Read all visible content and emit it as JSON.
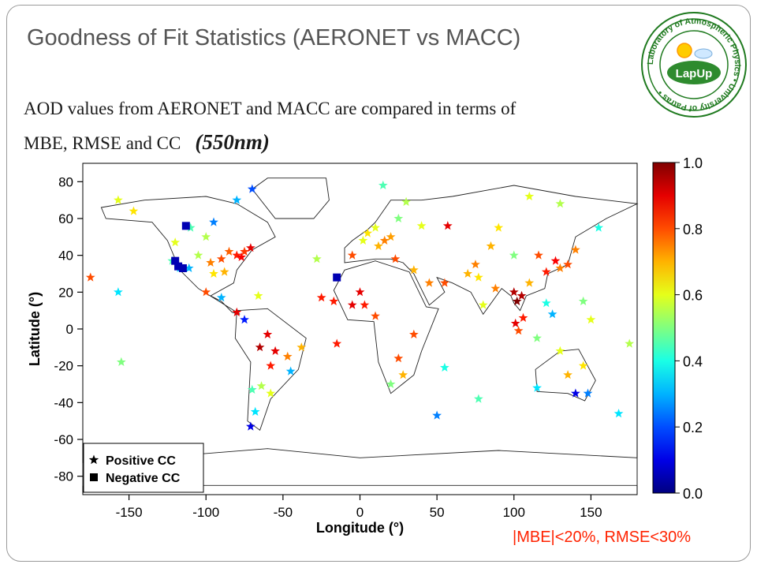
{
  "slide": {
    "title": "Goodness of Fit Statistics (AERONET vs MACC)",
    "body_line1": "AOD values from AERONET and MACC are compared in terms of",
    "body_line2": "MBE, RMSE and CC",
    "wavelength": "(550nm)",
    "criteria": "|MBE|<20%, RMSE<30%",
    "criteria_color": "#ff2200"
  },
  "logo": {
    "ring_text": "Laboratory of Atmospheric Physics • University of Patras •",
    "center_label": "LapUp",
    "colors": {
      "ring": "#1f7a1f",
      "center": "#2e8b2e",
      "text": "#ffffff"
    }
  },
  "chart_data": {
    "type": "scatter",
    "xlabel": "Longitude (°)",
    "ylabel": "Latitude (°)",
    "xlim": [
      -180,
      180
    ],
    "ylim": [
      -90,
      90
    ],
    "xticks": [
      -150,
      -100,
      -50,
      0,
      50,
      100,
      150
    ],
    "yticks": [
      -80,
      -60,
      -40,
      -20,
      0,
      20,
      40,
      60,
      80
    ],
    "colorbar": {
      "min": 0.0,
      "max": 1.0,
      "ticks": [
        "0.0",
        "0.2",
        "0.4",
        "0.6",
        "0.8",
        "1.0"
      ],
      "colormap": "jet"
    },
    "legend": {
      "placement": "bottom-left",
      "entries": [
        {
          "marker": "star",
          "label": "Positive CC"
        },
        {
          "marker": "square",
          "label": "Negative CC"
        }
      ]
    },
    "stations": [
      {
        "lon": -157,
        "lat": 70,
        "cc": 0.6,
        "marker": "star"
      },
      {
        "lon": -147,
        "lat": 64,
        "cc": 0.65,
        "marker": "star"
      },
      {
        "lon": -105,
        "lat": 40,
        "cc": 0.55,
        "marker": "star"
      },
      {
        "lon": -111,
        "lat": 33,
        "cc": 0.3,
        "marker": "star"
      },
      {
        "lon": -117,
        "lat": 33,
        "cc": 0.35,
        "marker": "star"
      },
      {
        "lon": -122,
        "lat": 37,
        "cc": 0.45,
        "marker": "star"
      },
      {
        "lon": -120,
        "lat": 47,
        "cc": 0.6,
        "marker": "star"
      },
      {
        "lon": -97,
        "lat": 36,
        "cc": 0.75,
        "marker": "star"
      },
      {
        "lon": -90,
        "lat": 38,
        "cc": 0.8,
        "marker": "star"
      },
      {
        "lon": -85,
        "lat": 42,
        "cc": 0.78,
        "marker": "star"
      },
      {
        "lon": -80,
        "lat": 40,
        "cc": 0.85,
        "marker": "star"
      },
      {
        "lon": -77,
        "lat": 39,
        "cc": 0.88,
        "marker": "star"
      },
      {
        "lon": -75,
        "lat": 42,
        "cc": 0.82,
        "marker": "star"
      },
      {
        "lon": -71,
        "lat": 44,
        "cc": 0.9,
        "marker": "star"
      },
      {
        "lon": -88,
        "lat": 31,
        "cc": 0.7,
        "marker": "star"
      },
      {
        "lon": -95,
        "lat": 30,
        "cc": 0.65,
        "marker": "star"
      },
      {
        "lon": -100,
        "lat": 50,
        "cc": 0.55,
        "marker": "star"
      },
      {
        "lon": -110,
        "lat": 55,
        "cc": 0.45,
        "marker": "star"
      },
      {
        "lon": -95,
        "lat": 58,
        "cc": 0.25,
        "marker": "star"
      },
      {
        "lon": -80,
        "lat": 70,
        "cc": 0.3,
        "marker": "star"
      },
      {
        "lon": -70,
        "lat": 76,
        "cc": 0.2,
        "marker": "star"
      },
      {
        "lon": -157,
        "lat": 20,
        "cc": 0.35,
        "marker": "star"
      },
      {
        "lon": -175,
        "lat": 28,
        "cc": 0.8,
        "marker": "star"
      },
      {
        "lon": -100,
        "lat": 20,
        "cc": 0.8,
        "marker": "star"
      },
      {
        "lon": -90,
        "lat": 17,
        "cc": 0.3,
        "marker": "star"
      },
      {
        "lon": -80,
        "lat": 9,
        "cc": 0.9,
        "marker": "star"
      },
      {
        "lon": -66,
        "lat": 18,
        "cc": 0.6,
        "marker": "star"
      },
      {
        "lon": -75,
        "lat": 5,
        "cc": 0.15,
        "marker": "star"
      },
      {
        "lon": -60,
        "lat": -3,
        "cc": 0.9,
        "marker": "star"
      },
      {
        "lon": -65,
        "lat": -10,
        "cc": 0.95,
        "marker": "star"
      },
      {
        "lon": -55,
        "lat": -12,
        "cc": 0.9,
        "marker": "star"
      },
      {
        "lon": -58,
        "lat": -20,
        "cc": 0.85,
        "marker": "star"
      },
      {
        "lon": -47,
        "lat": -15,
        "cc": 0.75,
        "marker": "star"
      },
      {
        "lon": -45,
        "lat": -23,
        "cc": 0.3,
        "marker": "star"
      },
      {
        "lon": -38,
        "lat": -10,
        "cc": 0.7,
        "marker": "star"
      },
      {
        "lon": -64,
        "lat": -31,
        "cc": 0.55,
        "marker": "star"
      },
      {
        "lon": -58,
        "lat": -35,
        "cc": 0.6,
        "marker": "star"
      },
      {
        "lon": -68,
        "lat": -45,
        "cc": 0.35,
        "marker": "star"
      },
      {
        "lon": -71,
        "lat": -53,
        "cc": 0.1,
        "marker": "star"
      },
      {
        "lon": -70,
        "lat": -33,
        "cc": 0.45,
        "marker": "star"
      },
      {
        "lon": -155,
        "lat": -18,
        "cc": 0.5,
        "marker": "star"
      },
      {
        "lon": -28,
        "lat": 38,
        "cc": 0.55,
        "marker": "star"
      },
      {
        "lon": -25,
        "lat": 17,
        "cc": 0.85,
        "marker": "star"
      },
      {
        "lon": -17,
        "lat": 15,
        "cc": 0.85,
        "marker": "star"
      },
      {
        "lon": -5,
        "lat": 13,
        "cc": 0.9,
        "marker": "star"
      },
      {
        "lon": -15,
        "lat": 28,
        "cc": 0.05,
        "marker": "square"
      },
      {
        "lon": -5,
        "lat": 40,
        "cc": 0.8,
        "marker": "star"
      },
      {
        "lon": 2,
        "lat": 48,
        "cc": 0.6,
        "marker": "star"
      },
      {
        "lon": 5,
        "lat": 52,
        "cc": 0.65,
        "marker": "star"
      },
      {
        "lon": 10,
        "lat": 55,
        "cc": 0.6,
        "marker": "star"
      },
      {
        "lon": 12,
        "lat": 45,
        "cc": 0.7,
        "marker": "star"
      },
      {
        "lon": 16,
        "lat": 48,
        "cc": 0.75,
        "marker": "star"
      },
      {
        "lon": 20,
        "lat": 50,
        "cc": 0.72,
        "marker": "star"
      },
      {
        "lon": 25,
        "lat": 60,
        "cc": 0.5,
        "marker": "star"
      },
      {
        "lon": 23,
        "lat": 38,
        "cc": 0.8,
        "marker": "star"
      },
      {
        "lon": 35,
        "lat": 32,
        "cc": 0.7,
        "marker": "star"
      },
      {
        "lon": 45,
        "lat": 25,
        "cc": 0.75,
        "marker": "star"
      },
      {
        "lon": 55,
        "lat": 25,
        "cc": 0.8,
        "marker": "star"
      },
      {
        "lon": 57,
        "lat": 56,
        "cc": 0.9,
        "marker": "star"
      },
      {
        "lon": 40,
        "lat": 56,
        "cc": 0.6,
        "marker": "star"
      },
      {
        "lon": 15,
        "lat": 78,
        "cc": 0.45,
        "marker": "star"
      },
      {
        "lon": 30,
        "lat": 69,
        "cc": 0.55,
        "marker": "star"
      },
      {
        "lon": 0,
        "lat": 20,
        "cc": 0.9,
        "marker": "star"
      },
      {
        "lon": 3,
        "lat": 13,
        "cc": 0.85,
        "marker": "star"
      },
      {
        "lon": 10,
        "lat": 7,
        "cc": 0.8,
        "marker": "star"
      },
      {
        "lon": -15,
        "lat": -8,
        "cc": 0.85,
        "marker": "star"
      },
      {
        "lon": 25,
        "lat": -16,
        "cc": 0.8,
        "marker": "star"
      },
      {
        "lon": 28,
        "lat": -25,
        "cc": 0.7,
        "marker": "star"
      },
      {
        "lon": 20,
        "lat": -30,
        "cc": 0.5,
        "marker": "star"
      },
      {
        "lon": 35,
        "lat": -3,
        "cc": 0.8,
        "marker": "star"
      },
      {
        "lon": 55,
        "lat": -21,
        "cc": 0.4,
        "marker": "star"
      },
      {
        "lon": 50,
        "lat": -47,
        "cc": 0.25,
        "marker": "star"
      },
      {
        "lon": 77,
        "lat": -38,
        "cc": 0.45,
        "marker": "star"
      },
      {
        "lon": 70,
        "lat": 30,
        "cc": 0.7,
        "marker": "star"
      },
      {
        "lon": 75,
        "lat": 35,
        "cc": 0.75,
        "marker": "star"
      },
      {
        "lon": 77,
        "lat": 28,
        "cc": 0.65,
        "marker": "star"
      },
      {
        "lon": 80,
        "lat": 13,
        "cc": 0.6,
        "marker": "star"
      },
      {
        "lon": 85,
        "lat": 45,
        "cc": 0.7,
        "marker": "star"
      },
      {
        "lon": 88,
        "lat": 22,
        "cc": 0.75,
        "marker": "star"
      },
      {
        "lon": 100,
        "lat": 40,
        "cc": 0.5,
        "marker": "star"
      },
      {
        "lon": 100,
        "lat": 20,
        "cc": 0.95,
        "marker": "star"
      },
      {
        "lon": 102,
        "lat": 15,
        "cc": 1.0,
        "marker": "star"
      },
      {
        "lon": 105,
        "lat": 18,
        "cc": 0.95,
        "marker": "star"
      },
      {
        "lon": 101,
        "lat": 3,
        "cc": 0.9,
        "marker": "star"
      },
      {
        "lon": 106,
        "lat": 6,
        "cc": 0.85,
        "marker": "star"
      },
      {
        "lon": 103,
        "lat": -1,
        "cc": 0.8,
        "marker": "star"
      },
      {
        "lon": 110,
        "lat": 25,
        "cc": 0.7,
        "marker": "star"
      },
      {
        "lon": 116,
        "lat": 40,
        "cc": 0.8,
        "marker": "star"
      },
      {
        "lon": 121,
        "lat": 31,
        "cc": 0.85,
        "marker": "star"
      },
      {
        "lon": 127,
        "lat": 37,
        "cc": 0.88,
        "marker": "star"
      },
      {
        "lon": 135,
        "lat": 35,
        "cc": 0.8,
        "marker": "star"
      },
      {
        "lon": 130,
        "lat": 33,
        "cc": 0.75,
        "marker": "star"
      },
      {
        "lon": 121,
        "lat": 14,
        "cc": 0.4,
        "marker": "star"
      },
      {
        "lon": 125,
        "lat": 8,
        "cc": 0.3,
        "marker": "star"
      },
      {
        "lon": 115,
        "lat": -5,
        "cc": 0.5,
        "marker": "star"
      },
      {
        "lon": 130,
        "lat": -12,
        "cc": 0.6,
        "marker": "star"
      },
      {
        "lon": 135,
        "lat": -25,
        "cc": 0.7,
        "marker": "star"
      },
      {
        "lon": 145,
        "lat": -20,
        "cc": 0.65,
        "marker": "star"
      },
      {
        "lon": 140,
        "lat": -35,
        "cc": 0.1,
        "marker": "star"
      },
      {
        "lon": 148,
        "lat": -35,
        "cc": 0.25,
        "marker": "star"
      },
      {
        "lon": 115,
        "lat": -32,
        "cc": 0.35,
        "marker": "star"
      },
      {
        "lon": 168,
        "lat": -46,
        "cc": 0.35,
        "marker": "star"
      },
      {
        "lon": 175,
        "lat": -8,
        "cc": 0.55,
        "marker": "star"
      },
      {
        "lon": 150,
        "lat": 5,
        "cc": 0.6,
        "marker": "star"
      },
      {
        "lon": 145,
        "lat": 15,
        "cc": 0.5,
        "marker": "star"
      },
      {
        "lon": 140,
        "lat": 43,
        "cc": 0.75,
        "marker": "star"
      },
      {
        "lon": 130,
        "lat": 68,
        "cc": 0.55,
        "marker": "star"
      },
      {
        "lon": 155,
        "lat": 55,
        "cc": 0.4,
        "marker": "star"
      },
      {
        "lon": 110,
        "lat": 72,
        "cc": 0.6,
        "marker": "star"
      },
      {
        "lon": 90,
        "lat": 55,
        "cc": 0.65,
        "marker": "star"
      },
      {
        "lon": -120,
        "lat": 37,
        "cc": 0.05,
        "marker": "square"
      },
      {
        "lon": -118,
        "lat": 34,
        "cc": 0.05,
        "marker": "square"
      },
      {
        "lon": -115,
        "lat": 33,
        "cc": 0.05,
        "marker": "square"
      },
      {
        "lon": -113,
        "lat": 56,
        "cc": 0.05,
        "marker": "square"
      }
    ]
  }
}
